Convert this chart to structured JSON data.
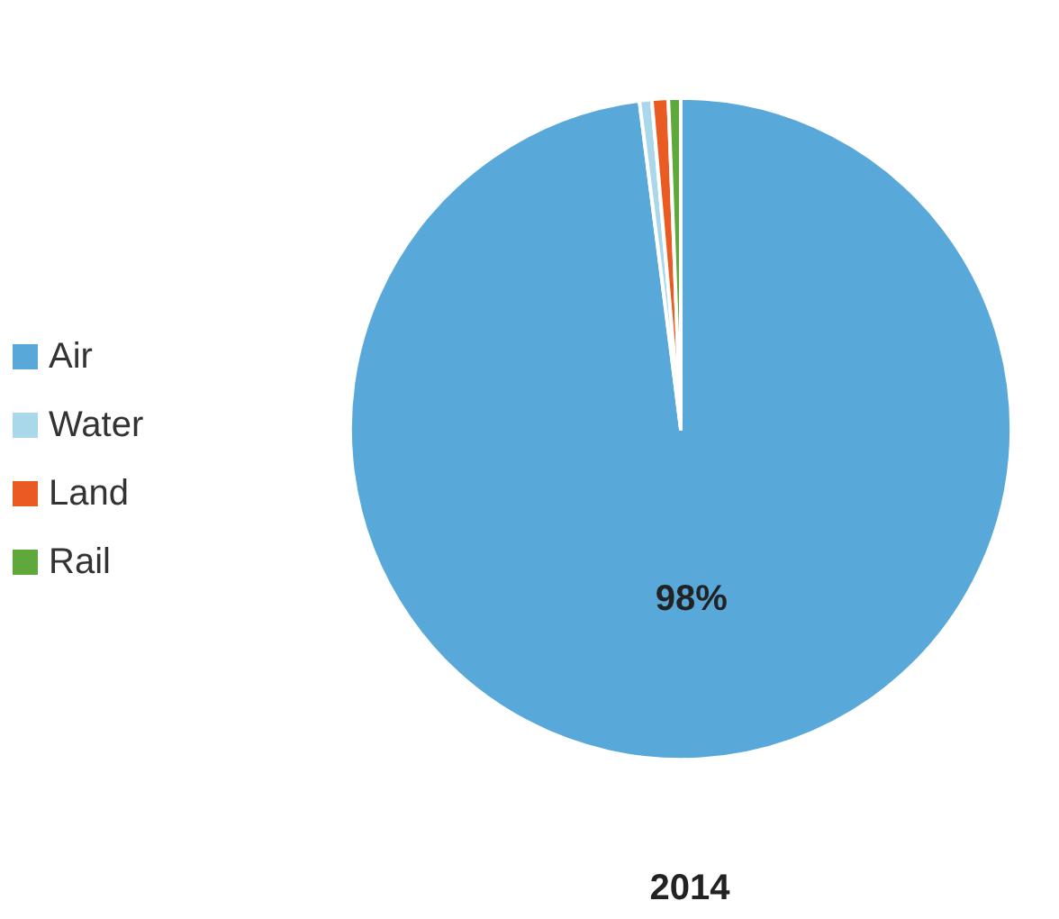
{
  "chart_data": {
    "type": "pie",
    "title": "2014",
    "categories": [
      "Air",
      "Water",
      "Land",
      "Rail"
    ],
    "values": [
      98,
      0.6,
      0.8,
      0.6
    ],
    "colors": [
      "#58a9d9",
      "#a8d8ea",
      "#ea5b24",
      "#5ea83c"
    ],
    "value_labels": [
      "98%",
      null,
      null,
      null
    ],
    "legend": "left"
  }
}
